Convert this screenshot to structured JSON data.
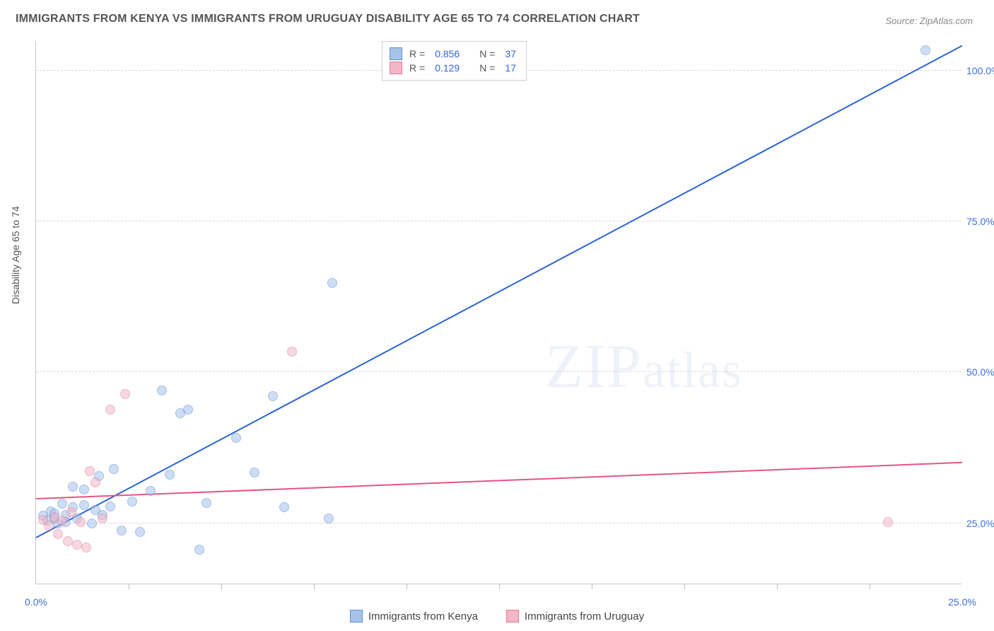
{
  "title": "IMMIGRANTS FROM KENYA VS IMMIGRANTS FROM URUGUAY DISABILITY AGE 65 TO 74 CORRELATION CHART",
  "source": "Source: ZipAtlas.com",
  "ylabel": "Disability Age 65 to 74",
  "watermark": "ZIPatlas",
  "chart": {
    "type": "scatter-with-regression",
    "background_color": "#ffffff",
    "grid_color": "#d8d8d8",
    "axis_color": "#c8c8c8",
    "tick_label_color": "#3b6fd6",
    "label_fontsize": 14,
    "title_fontsize": 16,
    "title_color": "#555555",
    "xlim": [
      0,
      25
    ],
    "ylim": [
      15,
      105
    ],
    "xticks": [
      0,
      25
    ],
    "xtick_labels": [
      "0.0%",
      "25.0%"
    ],
    "xminors": [
      2.5,
      5,
      7.5,
      10,
      12.5,
      15,
      17.5,
      20,
      22.5
    ],
    "yticks": [
      25,
      50,
      75,
      100
    ],
    "ytick_labels": [
      "25.0%",
      "50.0%",
      "75.0%",
      "100.0%"
    ],
    "marker_radius": 7,
    "marker_opacity": 0.55,
    "marker_border_width": 1
  },
  "series": [
    {
      "key": "kenya",
      "label": "Immigrants from Kenya",
      "fill": "#a7c3ea",
      "stroke": "#5b8fd6",
      "line_color": "#2b63d6",
      "R": "0.856",
      "N": "37",
      "regression": {
        "x1": 0,
        "y1": 22.5,
        "x2": 25,
        "y2": 104
      },
      "points": [
        [
          0.2,
          26.2
        ],
        [
          0.3,
          25.4
        ],
        [
          0.4,
          27.0
        ],
        [
          0.5,
          25.8
        ],
        [
          0.5,
          26.6
        ],
        [
          0.6,
          25.0
        ],
        [
          0.7,
          28.2
        ],
        [
          0.8,
          26.4
        ],
        [
          0.8,
          25.2
        ],
        [
          1.0,
          27.6
        ],
        [
          1.0,
          31.0
        ],
        [
          1.1,
          25.8
        ],
        [
          1.3,
          28.0
        ],
        [
          1.3,
          30.6
        ],
        [
          1.5,
          25.0
        ],
        [
          1.6,
          27.2
        ],
        [
          1.7,
          32.8
        ],
        [
          1.8,
          26.4
        ],
        [
          2.0,
          27.8
        ],
        [
          2.1,
          34.0
        ],
        [
          2.3,
          23.8
        ],
        [
          2.6,
          28.6
        ],
        [
          2.8,
          23.6
        ],
        [
          3.1,
          30.4
        ],
        [
          3.4,
          47.0
        ],
        [
          3.6,
          33.0
        ],
        [
          3.9,
          43.2
        ],
        [
          4.1,
          43.8
        ],
        [
          4.4,
          20.6
        ],
        [
          4.6,
          28.4
        ],
        [
          5.4,
          39.2
        ],
        [
          5.9,
          33.4
        ],
        [
          6.7,
          27.6
        ],
        [
          7.9,
          25.8
        ],
        [
          8.0,
          64.8
        ],
        [
          6.4,
          46.0
        ],
        [
          24.0,
          103.4
        ]
      ]
    },
    {
      "key": "uruguay",
      "label": "Immigrants from Uruguay",
      "fill": "#f2b7c7",
      "stroke": "#e17a9a",
      "line_color": "#e3567f",
      "R": "0.129",
      "N": "17",
      "regression": {
        "x1": 0,
        "y1": 29.0,
        "x2": 25,
        "y2": 35.0
      },
      "points": [
        [
          0.2,
          25.6
        ],
        [
          0.35,
          24.6
        ],
        [
          0.5,
          26.0
        ],
        [
          0.6,
          23.2
        ],
        [
          0.7,
          25.4
        ],
        [
          0.85,
          22.0
        ],
        [
          0.95,
          26.8
        ],
        [
          1.1,
          21.4
        ],
        [
          1.2,
          25.2
        ],
        [
          1.35,
          21.0
        ],
        [
          1.45,
          33.6
        ],
        [
          1.6,
          31.8
        ],
        [
          1.8,
          25.8
        ],
        [
          2.0,
          43.8
        ],
        [
          2.4,
          46.4
        ],
        [
          6.9,
          53.4
        ],
        [
          23.0,
          25.2
        ]
      ]
    }
  ],
  "legend_top": {
    "R_label": "R =",
    "N_label": "N ="
  }
}
